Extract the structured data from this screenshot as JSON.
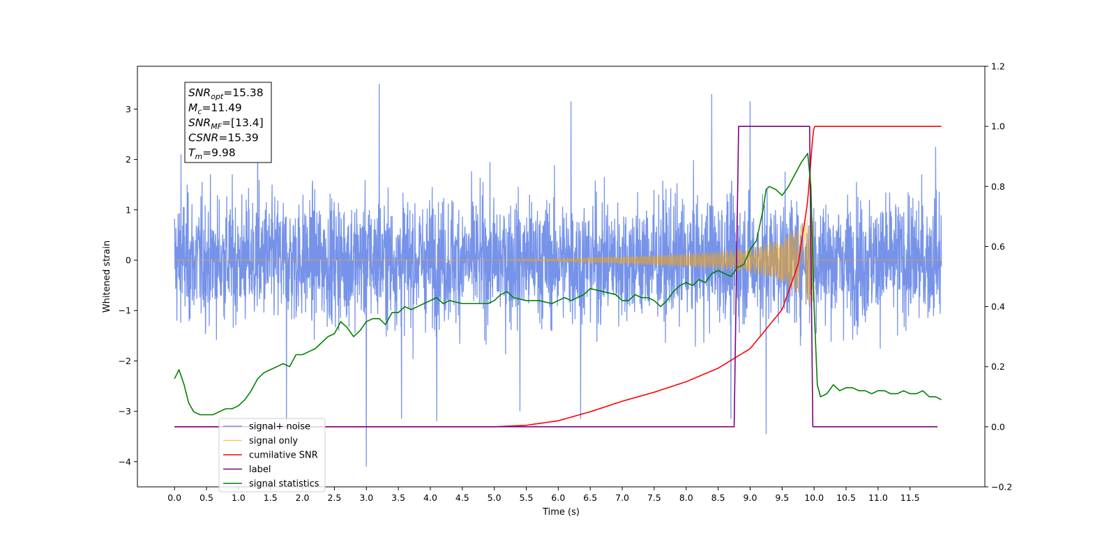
{
  "chart_data": {
    "type": "line",
    "xlabel": "Time (s)",
    "ylabel": "Whitened strain",
    "xlim": [
      -0.58,
      12.67
    ],
    "ylim_left": [
      -4.5,
      3.85
    ],
    "ylim_right": [
      -0.2,
      1.2
    ],
    "x_ticks": [
      "0.0",
      "0.5",
      "1.0",
      "1.5",
      "2.0",
      "2.5",
      "3.0",
      "3.5",
      "4.0",
      "4.5",
      "5.0",
      "5.5",
      "6.0",
      "6.5",
      "7.0",
      "7.5",
      "8.0",
      "8.5",
      "9.0",
      "9.5",
      "10.0",
      "10.5",
      "11.0",
      "11.5"
    ],
    "y_left_ticks": [
      "3",
      "2",
      "1",
      "0",
      "−1",
      "−2",
      "−3",
      "−4"
    ],
    "y_right_ticks": [
      "1.2",
      "1.0",
      "0.8",
      "0.6",
      "0.4",
      "0.2",
      "0.0",
      "−0.2"
    ],
    "legend": {
      "placement": "lower-left",
      "entries": [
        {
          "label": "signal+ noise",
          "color": "#4169e1"
        },
        {
          "label": "signal only",
          "color": "#ffa500"
        },
        {
          "label": "cumilative SNR",
          "color": "#ff0000"
        },
        {
          "label": "label",
          "color": "#800080"
        },
        {
          "label": "signal statistics",
          "color": "#008000"
        }
      ]
    },
    "annotation": {
      "lines": [
        {
          "sym": "SNR",
          "sub": "opt",
          "val": "=15.38"
        },
        {
          "sym": "M",
          "sub": "c",
          "val": "=11.49"
        },
        {
          "sym": "SNR",
          "sub": "MF",
          "val": "=[13.4]"
        },
        {
          "sym": "CSNR",
          "sub": "",
          "val": "=15.39"
        },
        {
          "sym": "T",
          "sub": "m",
          "val": "=9.98"
        }
      ]
    },
    "series": [
      {
        "name": "signal+ noise",
        "axis": "left",
        "color": "#4169e1",
        "t_start": 0.0,
        "t_end": 11.99,
        "envelope_typical": [
          -1.6,
          1.6
        ],
        "spikes": [
          [
            3.2,
            3.5
          ],
          [
            3.0,
            -4.1
          ],
          [
            9.0,
            3.15
          ],
          [
            9.25,
            -3.45
          ],
          [
            1.3,
            2.75
          ],
          [
            8.4,
            3.3
          ],
          [
            6.2,
            3.15
          ],
          [
            1.75,
            -3.2
          ],
          [
            3.55,
            -3.15
          ],
          [
            4.1,
            -3.2
          ],
          [
            5.4,
            -3.0
          ],
          [
            6.35,
            -3.15
          ],
          [
            8.7,
            -3.15
          ],
          [
            0.1,
            2.1
          ],
          [
            11.9,
            2.25
          ]
        ]
      },
      {
        "name": "signal only",
        "axis": "left",
        "color": "#ffa500",
        "envelope": {
          "x": [
            0.0,
            5.0,
            6.0,
            7.0,
            8.0,
            8.5,
            9.0,
            9.5,
            9.75,
            9.9,
            9.98,
            10.0
          ],
          "y": [
            0.0,
            0.0,
            0.03,
            0.07,
            0.13,
            0.18,
            0.25,
            0.42,
            0.65,
            0.88,
            1.0,
            0.0
          ]
        }
      },
      {
        "name": "cumilative SNR",
        "axis": "right",
        "color": "#ff0000",
        "x": [
          0.0,
          5.0,
          5.5,
          6.0,
          6.5,
          7.0,
          7.5,
          8.0,
          8.5,
          9.0,
          9.5,
          9.75,
          9.9,
          9.98,
          10.0,
          11.99
        ],
        "y": [
          0.0,
          0.0,
          0.005,
          0.02,
          0.05,
          0.085,
          0.115,
          0.15,
          0.195,
          0.26,
          0.39,
          0.54,
          0.75,
          0.97,
          1.0,
          1.0
        ]
      },
      {
        "name": "label",
        "axis": "right",
        "color": "#800080",
        "x": [
          0.0,
          8.75,
          8.82,
          9.93,
          9.98,
          11.93
        ],
        "y": [
          0.0,
          0.0,
          1.0,
          1.0,
          0.0,
          0.0
        ]
      },
      {
        "name": "signal statistics",
        "axis": "right",
        "color": "#008000",
        "x": [
          0.0,
          0.07,
          0.15,
          0.22,
          0.3,
          0.4,
          0.5,
          0.6,
          0.7,
          0.8,
          0.9,
          1.0,
          1.1,
          1.2,
          1.3,
          1.4,
          1.5,
          1.6,
          1.7,
          1.8,
          1.9,
          2.0,
          2.1,
          2.2,
          2.3,
          2.4,
          2.5,
          2.6,
          2.7,
          2.8,
          2.9,
          3.0,
          3.1,
          3.2,
          3.3,
          3.4,
          3.5,
          3.6,
          3.7,
          3.8,
          3.9,
          4.0,
          4.1,
          4.2,
          4.3,
          4.5,
          4.7,
          4.9,
          5.0,
          5.1,
          5.2,
          5.3,
          5.5,
          5.7,
          5.9,
          6.0,
          6.1,
          6.2,
          6.3,
          6.4,
          6.5,
          6.7,
          6.9,
          7.0,
          7.1,
          7.2,
          7.3,
          7.4,
          7.5,
          7.6,
          7.7,
          7.8,
          7.9,
          8.0,
          8.1,
          8.2,
          8.3,
          8.4,
          8.5,
          8.6,
          8.7,
          8.8,
          8.9,
          9.0,
          9.1,
          9.2,
          9.25,
          9.3,
          9.4,
          9.5,
          9.6,
          9.7,
          9.8,
          9.9,
          9.95,
          10.0,
          10.05,
          10.1,
          10.2,
          10.3,
          10.4,
          10.5,
          10.6,
          10.7,
          10.8,
          10.9,
          11.0,
          11.1,
          11.2,
          11.3,
          11.4,
          11.5,
          11.6,
          11.7,
          11.8,
          11.9,
          11.99
        ],
        "y": [
          0.16,
          0.19,
          0.14,
          0.08,
          0.05,
          0.04,
          0.04,
          0.04,
          0.05,
          0.06,
          0.06,
          0.07,
          0.09,
          0.12,
          0.16,
          0.18,
          0.19,
          0.2,
          0.21,
          0.2,
          0.24,
          0.24,
          0.25,
          0.26,
          0.28,
          0.3,
          0.31,
          0.35,
          0.33,
          0.3,
          0.32,
          0.35,
          0.36,
          0.36,
          0.34,
          0.38,
          0.38,
          0.4,
          0.39,
          0.4,
          0.41,
          0.42,
          0.43,
          0.41,
          0.42,
          0.41,
          0.41,
          0.41,
          0.42,
          0.44,
          0.45,
          0.43,
          0.42,
          0.42,
          0.41,
          0.42,
          0.43,
          0.42,
          0.43,
          0.44,
          0.46,
          0.45,
          0.44,
          0.42,
          0.42,
          0.44,
          0.43,
          0.43,
          0.42,
          0.4,
          0.42,
          0.45,
          0.47,
          0.48,
          0.47,
          0.49,
          0.48,
          0.51,
          0.52,
          0.51,
          0.5,
          0.53,
          0.54,
          0.59,
          0.62,
          0.72,
          0.79,
          0.8,
          0.79,
          0.77,
          0.8,
          0.84,
          0.88,
          0.91,
          0.8,
          0.4,
          0.14,
          0.1,
          0.11,
          0.14,
          0.12,
          0.13,
          0.13,
          0.12,
          0.12,
          0.11,
          0.12,
          0.12,
          0.11,
          0.11,
          0.12,
          0.11,
          0.11,
          0.12,
          0.1,
          0.1,
          0.09
        ]
      }
    ]
  }
}
